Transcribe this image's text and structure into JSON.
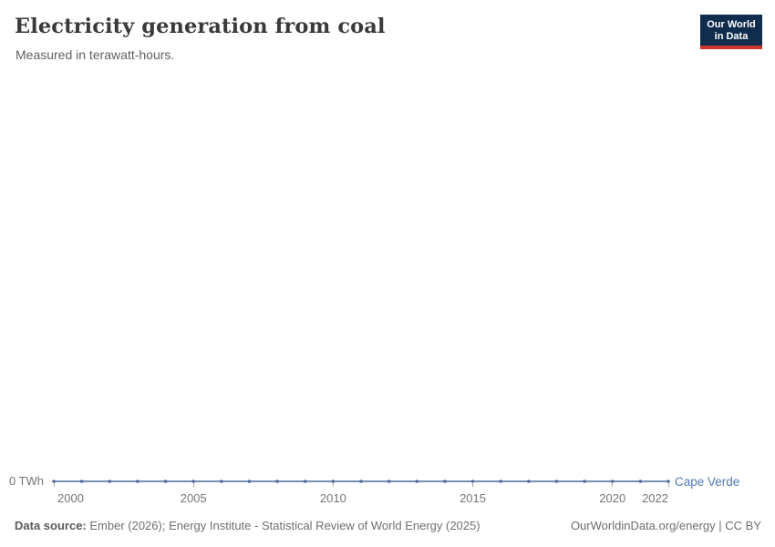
{
  "header": {
    "title": "Electricity generation from coal",
    "subtitle": "Measured in terawatt-hours.",
    "logo": {
      "line1": "Our World",
      "line2": "in Data"
    }
  },
  "chart_data": {
    "type": "line",
    "title": "Electricity generation from coal",
    "ylabel": "terawatt-hours",
    "xlabel": "",
    "grid": false,
    "legend_position": "end-of-line",
    "x": [
      2000,
      2001,
      2002,
      2003,
      2004,
      2005,
      2006,
      2007,
      2008,
      2009,
      2010,
      2011,
      2012,
      2013,
      2014,
      2015,
      2016,
      2017,
      2018,
      2019,
      2020,
      2021,
      2022
    ],
    "series": [
      {
        "name": "Cape Verde",
        "values": [
          0,
          0,
          0,
          0,
          0,
          0,
          0,
          0,
          0,
          0,
          0,
          0,
          0,
          0,
          0,
          0,
          0,
          0,
          0,
          0,
          0,
          0,
          0
        ]
      }
    ],
    "x_ticks": [
      2000,
      2005,
      2010,
      2015,
      2020,
      2022
    ],
    "y_tick_label": "0 TWh",
    "ylim": [
      0,
      1
    ]
  },
  "colors": {
    "series": "#4C6A9C",
    "series_label": "#5379B5",
    "logo_bg": "#102D4E",
    "logo_red": "#D0342C"
  },
  "footer": {
    "source_bold": "Data source:",
    "source_rest": " Ember (2026); Energy Institute - Statistical Review of World Energy (2025)",
    "credit": "OurWorldinData.org/energy | CC BY"
  }
}
